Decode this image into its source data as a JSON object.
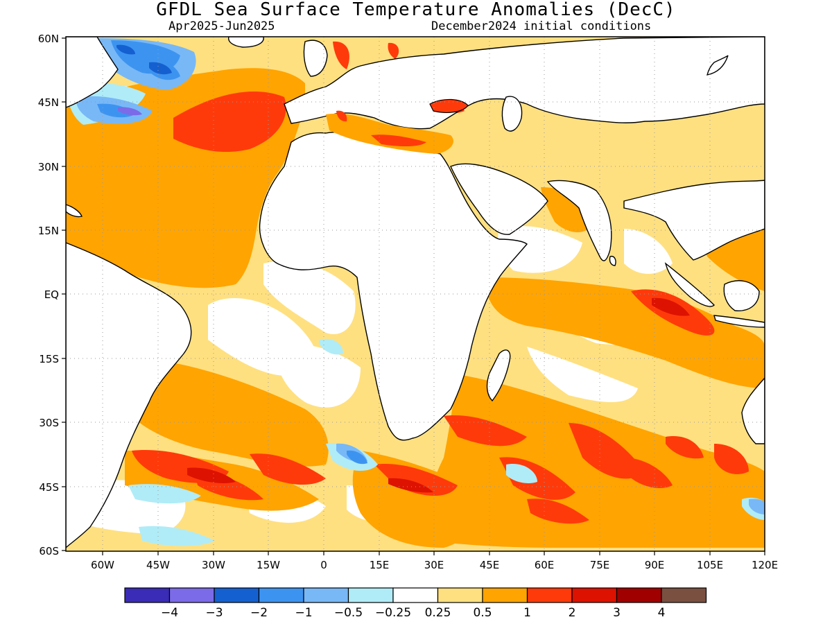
{
  "header": {
    "title": "GFDL Sea Surface Temperature Anomalies (DecC)",
    "period": "Apr2025-Jun2025",
    "init": "December2024 initial conditions"
  },
  "map": {
    "lat_labels": [
      "60N",
      "45N",
      "30N",
      "15N",
      "EQ",
      "15S",
      "30S",
      "45S",
      "60S"
    ],
    "lon_labels": [
      "60W",
      "45W",
      "30W",
      "15W",
      "0",
      "15E",
      "30E",
      "45E",
      "60E",
      "75E",
      "90E",
      "105E",
      "120E"
    ],
    "lat_range": [
      -60,
      60
    ],
    "lon_range": [
      -70,
      120
    ],
    "grid": true,
    "land_color": "#ffffff",
    "coastline_color": "#000000"
  },
  "colorbar": {
    "colors": [
      "#3a2cb6",
      "#7b6be8",
      "#1560d0",
      "#3d94f0",
      "#78b8f7",
      "#b0ecf7",
      "#ffffff",
      "#ffe080",
      "#ffa400",
      "#ff3a0a",
      "#dd1200",
      "#a00000",
      "#7a5040"
    ],
    "labels": [
      "−4",
      "−3",
      "−2",
      "−1",
      "−0.5",
      "−0.25",
      "0.25",
      "0.5",
      "1",
      "2",
      "3",
      "4"
    ]
  },
  "legend": {
    "unit": "DecC"
  }
}
